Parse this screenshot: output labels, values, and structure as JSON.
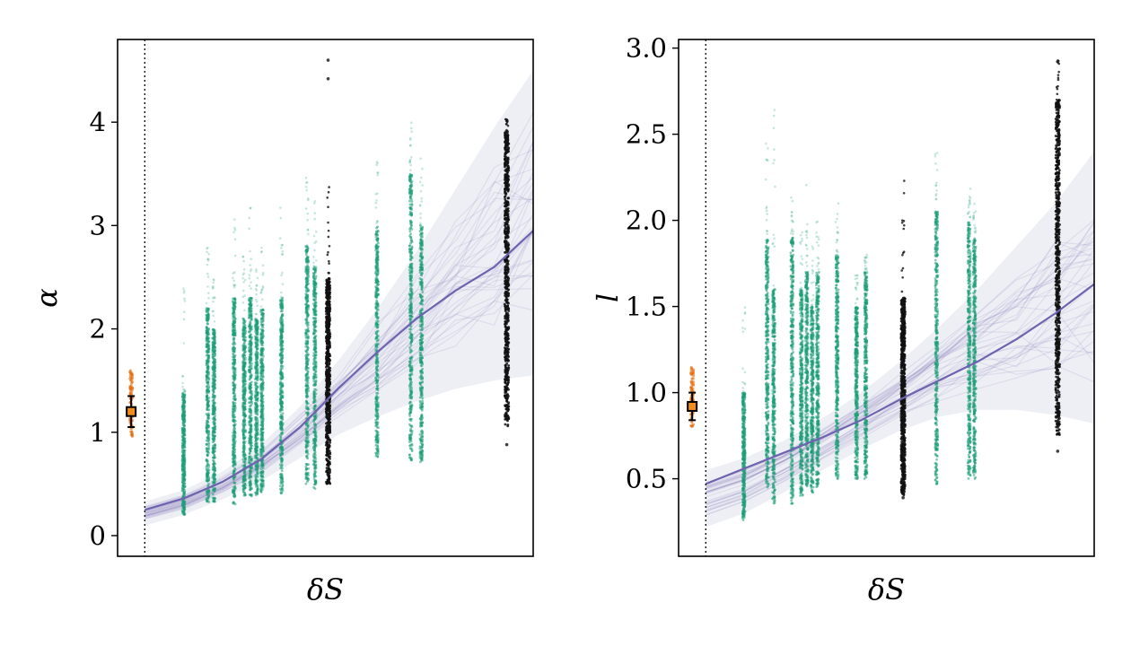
{
  "chart_data": [
    {
      "type": "scatter",
      "xlabel": "δS",
      "ylabel": "α",
      "ylim": [
        -0.2,
        4.8
      ],
      "yticks": [
        0,
        1,
        2,
        3,
        4
      ],
      "xlim": [
        -0.07,
        1.0
      ],
      "reference_x": 0,
      "reference_point": {
        "x": -0.035,
        "y": 1.2,
        "ylo": 1.05,
        "yhi": 1.35,
        "spread_lo": 0.95,
        "spread_hi": 1.6
      },
      "columns": [
        {
          "x": 0.1,
          "lo": 0.2,
          "hi": 1.4,
          "outlier_hi": 2.4,
          "group": "model"
        },
        {
          "x": 0.162,
          "lo": 0.32,
          "hi": 2.2,
          "outlier_hi": 2.8,
          "group": "model"
        },
        {
          "x": 0.178,
          "lo": 0.32,
          "hi": 2.0,
          "outlier_hi": 2.5,
          "group": "model"
        },
        {
          "x": 0.23,
          "lo": 0.3,
          "hi": 2.3,
          "outlier_hi": 3.1,
          "group": "model"
        },
        {
          "x": 0.256,
          "lo": 0.38,
          "hi": 2.1,
          "outlier_hi": 2.7,
          "group": "model"
        },
        {
          "x": 0.272,
          "lo": 0.38,
          "hi": 2.3,
          "outlier_hi": 3.2,
          "group": "model"
        },
        {
          "x": 0.288,
          "lo": 0.38,
          "hi": 2.1,
          "outlier_hi": 2.6,
          "group": "model"
        },
        {
          "x": 0.302,
          "lo": 0.4,
          "hi": 2.2,
          "outlier_hi": 2.9,
          "group": "model"
        },
        {
          "x": 0.352,
          "lo": 0.4,
          "hi": 2.3,
          "outlier_hi": 3.2,
          "group": "model"
        },
        {
          "x": 0.418,
          "lo": 0.5,
          "hi": 2.8,
          "outlier_hi": 3.5,
          "group": "model"
        },
        {
          "x": 0.438,
          "lo": 0.45,
          "hi": 2.6,
          "outlier_hi": 3.3,
          "group": "model"
        },
        {
          "x": 0.472,
          "lo": 0.5,
          "hi": 2.5,
          "outlier_hi": 3.4,
          "group": "black"
        },
        {
          "x": 0.598,
          "lo": 0.75,
          "hi": 3.0,
          "outlier_hi": 3.8,
          "group": "model"
        },
        {
          "x": 0.685,
          "lo": 0.72,
          "hi": 3.5,
          "outlier_hi": 4.0,
          "group": "model"
        },
        {
          "x": 0.712,
          "lo": 0.7,
          "hi": 3.0,
          "outlier_hi": 3.7,
          "group": "model"
        },
        {
          "x": 0.932,
          "lo": 1.05,
          "hi": 3.9,
          "outlier_hi": 4.1,
          "group": "black"
        }
      ],
      "black_outliers": [
        {
          "x": 0.472,
          "y": 4.6
        },
        {
          "x": 0.472,
          "y": 4.42
        },
        {
          "x": 0.932,
          "y": 0.88
        }
      ],
      "mean_curve": {
        "x": [
          0,
          0.1,
          0.2,
          0.3,
          0.4,
          0.5,
          0.6,
          0.7,
          0.8,
          0.9,
          1.0
        ],
        "y": [
          0.25,
          0.36,
          0.52,
          0.74,
          1.05,
          1.43,
          1.78,
          2.1,
          2.37,
          2.6,
          2.95
        ]
      },
      "band_upper": [
        0.33,
        0.44,
        0.62,
        0.88,
        1.25,
        1.7,
        2.2,
        2.75,
        3.35,
        3.95,
        4.5
      ],
      "band_lower": [
        0.1,
        0.2,
        0.35,
        0.53,
        0.75,
        0.98,
        1.15,
        1.3,
        1.42,
        1.5,
        1.55
      ]
    },
    {
      "type": "scatter",
      "xlabel": "δS",
      "ylabel": "l",
      "ylim": [
        0.05,
        3.05
      ],
      "yticks": [
        0.5,
        1.0,
        1.5,
        2.0,
        2.5,
        3.0
      ],
      "ytick_labels": [
        "0.5",
        "1.0",
        "1.5",
        "2.0",
        "2.5",
        "3.0"
      ],
      "xlim": [
        -0.07,
        1.0
      ],
      "reference_x": 0,
      "reference_point": {
        "x": -0.035,
        "y": 0.92,
        "ylo": 0.84,
        "yhi": 1.0,
        "spread_lo": 0.8,
        "spread_hi": 1.15
      },
      "columns": [
        {
          "x": 0.098,
          "lo": 0.26,
          "hi": 1.0,
          "outlier_hi": 1.6,
          "group": "model"
        },
        {
          "x": 0.158,
          "lo": 0.45,
          "hi": 1.9,
          "outlier_hi": 2.55,
          "group": "model"
        },
        {
          "x": 0.175,
          "lo": 0.35,
          "hi": 1.6,
          "outlier_hi": 2.7,
          "group": "model"
        },
        {
          "x": 0.222,
          "lo": 0.35,
          "hi": 1.9,
          "outlier_hi": 2.2,
          "group": "model"
        },
        {
          "x": 0.246,
          "lo": 0.4,
          "hi": 1.6,
          "outlier_hi": 2.0,
          "group": "model"
        },
        {
          "x": 0.26,
          "lo": 0.45,
          "hi": 1.7,
          "outlier_hi": 2.3,
          "group": "model"
        },
        {
          "x": 0.274,
          "lo": 0.42,
          "hi": 1.5,
          "outlier_hi": 1.9,
          "group": "model"
        },
        {
          "x": 0.288,
          "lo": 0.45,
          "hi": 1.7,
          "outlier_hi": 2.0,
          "group": "model"
        },
        {
          "x": 0.338,
          "lo": 0.5,
          "hi": 1.8,
          "outlier_hi": 2.1,
          "group": "model"
        },
        {
          "x": 0.388,
          "lo": 0.5,
          "hi": 1.5,
          "outlier_hi": 1.7,
          "group": "model"
        },
        {
          "x": 0.412,
          "lo": 0.5,
          "hi": 1.7,
          "outlier_hi": 1.8,
          "group": "model"
        },
        {
          "x": 0.508,
          "lo": 0.4,
          "hi": 1.55,
          "outlier_hi": 2.25,
          "group": "black"
        },
        {
          "x": 0.594,
          "lo": 0.45,
          "hi": 2.05,
          "outlier_hi": 2.4,
          "group": "model"
        },
        {
          "x": 0.678,
          "lo": 0.5,
          "hi": 2.0,
          "outlier_hi": 2.2,
          "group": "model"
        },
        {
          "x": 0.692,
          "lo": 0.5,
          "hi": 1.9,
          "outlier_hi": 2.1,
          "group": "model"
        },
        {
          "x": 0.906,
          "lo": 0.75,
          "hi": 2.7,
          "outlier_hi": 2.93,
          "group": "black"
        }
      ],
      "black_outliers": [
        {
          "x": 0.906,
          "y": 0.66
        },
        {
          "x": 0.508,
          "y": 0.39
        }
      ],
      "mean_curve": {
        "x": [
          0,
          0.1,
          0.2,
          0.3,
          0.4,
          0.5,
          0.6,
          0.7,
          0.8,
          0.9,
          1.0
        ],
        "y": [
          0.47,
          0.56,
          0.65,
          0.74,
          0.84,
          0.96,
          1.07,
          1.18,
          1.31,
          1.46,
          1.63
        ]
      },
      "band_upper": [
        0.55,
        0.62,
        0.72,
        0.85,
        1.0,
        1.18,
        1.38,
        1.6,
        1.85,
        2.1,
        2.4
      ],
      "band_lower": [
        0.22,
        0.3,
        0.42,
        0.55,
        0.67,
        0.78,
        0.86,
        0.9,
        0.9,
        0.87,
        0.82
      ]
    }
  ]
}
